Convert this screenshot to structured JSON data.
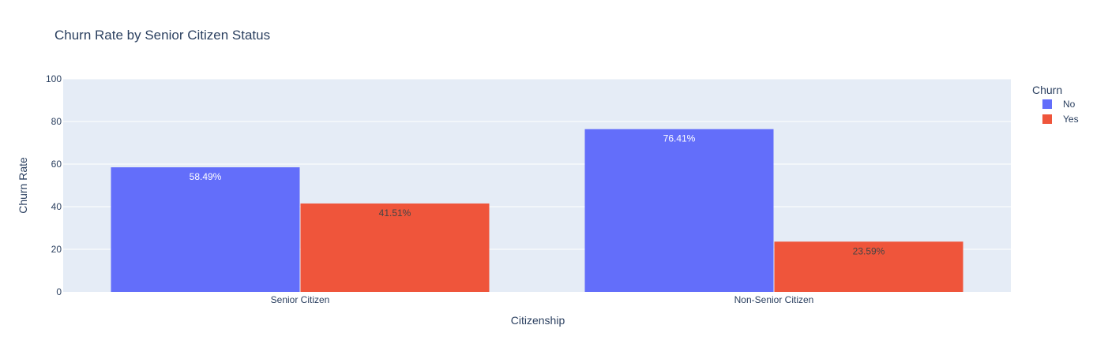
{
  "chart_data": {
    "type": "bar",
    "title": "Churn Rate by Senior Citizen Status",
    "xlabel": "Citizenship",
    "ylabel": "Churn Rate",
    "categories": [
      "Senior Citizen",
      "Non-Senior Citizen"
    ],
    "ylim": [
      0,
      100
    ],
    "yticks": [
      0,
      20,
      40,
      60,
      80,
      100
    ],
    "grid": true,
    "legend": {
      "title": "Churn",
      "placement": "right"
    },
    "series": [
      {
        "name": "No",
        "values": [
          58.49,
          76.41
        ],
        "labels": [
          "58.49%",
          "76.41%"
        ],
        "color": "#636efa",
        "label_color": "#ffffff"
      },
      {
        "name": "Yes",
        "values": [
          41.51,
          23.59
        ],
        "labels": [
          "41.51%",
          "23.59%"
        ],
        "color": "#ef553b",
        "label_color": "#444444"
      }
    ]
  },
  "colors": {
    "plot_bg": "#e5ecf6",
    "grid": "#ffffff",
    "text": "#2a3f5f"
  }
}
